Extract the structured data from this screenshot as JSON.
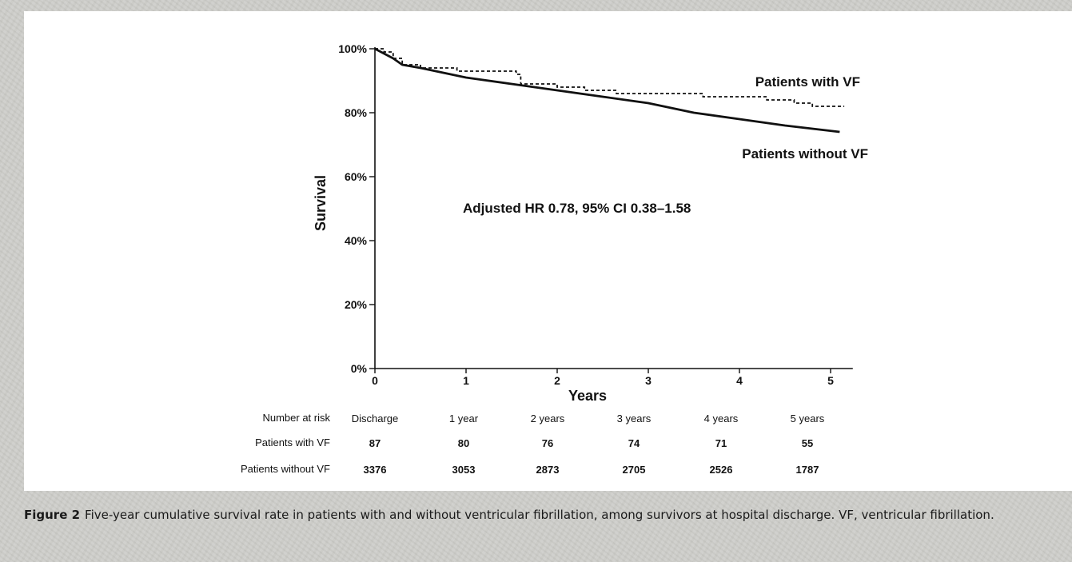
{
  "chart_data": {
    "type": "line",
    "ylabel": "Survival",
    "xlabel": "Years",
    "xlim": [
      0,
      5.2
    ],
    "ylim": [
      0,
      100
    ],
    "x_ticks": [
      0,
      1,
      2,
      3,
      4,
      5
    ],
    "y_ticks": [
      0,
      20,
      40,
      60,
      80,
      100
    ],
    "y_tick_labels": [
      "0%",
      "20%",
      "40%",
      "60%",
      "80%",
      "100%"
    ],
    "grid": false,
    "series": [
      {
        "name": "Patients with VF",
        "style": "dashed",
        "points": [
          [
            0,
            100
          ],
          [
            0.1,
            99
          ],
          [
            0.2,
            97
          ],
          [
            0.3,
            95
          ],
          [
            0.5,
            94
          ],
          [
            0.7,
            94
          ],
          [
            0.9,
            93
          ],
          [
            1.3,
            93
          ],
          [
            1.55,
            92
          ],
          [
            1.6,
            89
          ],
          [
            2.0,
            88
          ],
          [
            2.3,
            87
          ],
          [
            2.6,
            87
          ],
          [
            2.65,
            86
          ],
          [
            3.5,
            86
          ],
          [
            3.6,
            85
          ],
          [
            4.2,
            85
          ],
          [
            4.3,
            84
          ],
          [
            4.55,
            84
          ],
          [
            4.6,
            83
          ],
          [
            4.8,
            82
          ],
          [
            5.15,
            82
          ]
        ]
      },
      {
        "name": "Patients without VF",
        "style": "solid",
        "points": [
          [
            0,
            100
          ],
          [
            0.2,
            97
          ],
          [
            0.3,
            95
          ],
          [
            0.5,
            94
          ],
          [
            1.0,
            91
          ],
          [
            1.5,
            89
          ],
          [
            2.0,
            87
          ],
          [
            2.5,
            85
          ],
          [
            3.0,
            83
          ],
          [
            3.5,
            80
          ],
          [
            4.0,
            78
          ],
          [
            4.5,
            76
          ],
          [
            4.8,
            75
          ],
          [
            5.1,
            74
          ]
        ]
      }
    ],
    "annotations": [
      {
        "text": "Patients with VF"
      },
      {
        "text": "Patients without VF"
      },
      {
        "text": "Adjusted HR 0.78, 95% CI 0.38–1.58"
      }
    ],
    "risk_table": {
      "header_label": "Number at risk",
      "columns": [
        "Discharge",
        "1 year",
        "2 years",
        "3 years",
        "4 years",
        "5 years"
      ],
      "rows": [
        {
          "label": "Patients with VF",
          "values": [
            "87",
            "80",
            "76",
            "74",
            "71",
            "55"
          ]
        },
        {
          "label": "Patients without VF",
          "values": [
            "3376",
            "3053",
            "2873",
            "2705",
            "2526",
            "1787"
          ]
        }
      ]
    }
  },
  "caption": {
    "label": "Figure 2",
    "text": "Five-year cumulative survival rate in patients with and without ventricular fibrillation, among survivors at hospital discharge. VF, ventricular fibrillation."
  }
}
